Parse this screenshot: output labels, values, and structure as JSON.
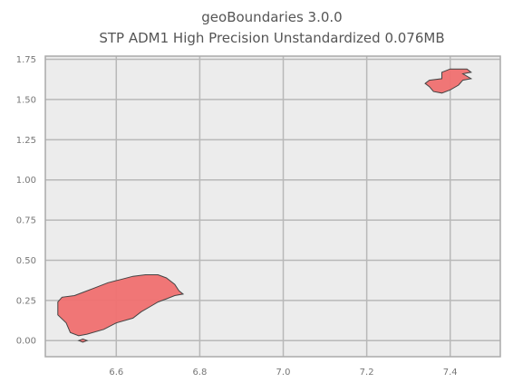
{
  "chart_data": {
    "type": "map",
    "title": "geoBoundaries 3.0.0",
    "subtitle": "STP ADM1 High Precision Unstandardized 0.076MB",
    "xlim": [
      6.43,
      7.52
    ],
    "ylim": [
      -0.1,
      1.77
    ],
    "x_ticks": [
      "6.6",
      "6.8",
      "7.0",
      "7.2",
      "7.4"
    ],
    "x_tick_values": [
      6.6,
      6.8,
      7.0,
      7.2,
      7.4
    ],
    "y_ticks": [
      "0.00",
      "0.25",
      "0.50",
      "0.75",
      "1.00",
      "1.25",
      "1.50",
      "1.75"
    ],
    "y_tick_values": [
      0.0,
      0.25,
      0.5,
      0.75,
      1.0,
      1.25,
      1.5,
      1.75
    ],
    "grid": true,
    "fill_color": "#f07070",
    "edge_color": "#444444",
    "background": "#ececec",
    "regions": [
      {
        "id": "sao-tome",
        "coords": [
          [
            6.46,
            0.24
          ],
          [
            6.47,
            0.27
          ],
          [
            6.5,
            0.28
          ],
          [
            6.52,
            0.3
          ],
          [
            6.55,
            0.33
          ],
          [
            6.58,
            0.36
          ],
          [
            6.61,
            0.38
          ],
          [
            6.64,
            0.4
          ],
          [
            6.67,
            0.41
          ],
          [
            6.7,
            0.41
          ],
          [
            6.72,
            0.39
          ],
          [
            6.74,
            0.35
          ],
          [
            6.75,
            0.31
          ],
          [
            6.76,
            0.29
          ],
          [
            6.74,
            0.28
          ],
          [
            6.72,
            0.26
          ],
          [
            6.7,
            0.24
          ],
          [
            6.68,
            0.21
          ],
          [
            6.66,
            0.18
          ],
          [
            6.64,
            0.14
          ],
          [
            6.6,
            0.11
          ],
          [
            6.57,
            0.07
          ],
          [
            6.53,
            0.04
          ],
          [
            6.51,
            0.03
          ],
          [
            6.49,
            0.05
          ],
          [
            6.48,
            0.11
          ],
          [
            6.46,
            0.16
          ],
          [
            6.46,
            0.2
          ],
          [
            6.46,
            0.24
          ]
        ]
      },
      {
        "id": "rolas",
        "coords": [
          [
            6.51,
            0.0
          ],
          [
            6.52,
            0.01
          ],
          [
            6.53,
            0.0
          ],
          [
            6.52,
            -0.01
          ],
          [
            6.51,
            0.0
          ]
        ]
      },
      {
        "id": "principe",
        "coords": [
          [
            7.34,
            1.6
          ],
          [
            7.35,
            1.62
          ],
          [
            7.38,
            1.63
          ],
          [
            7.38,
            1.67
          ],
          [
            7.4,
            1.69
          ],
          [
            7.44,
            1.69
          ],
          [
            7.45,
            1.67
          ],
          [
            7.43,
            1.66
          ],
          [
            7.45,
            1.63
          ],
          [
            7.43,
            1.62
          ],
          [
            7.42,
            1.59
          ],
          [
            7.4,
            1.56
          ],
          [
            7.38,
            1.54
          ],
          [
            7.36,
            1.55
          ],
          [
            7.35,
            1.58
          ],
          [
            7.34,
            1.6
          ]
        ]
      }
    ]
  }
}
